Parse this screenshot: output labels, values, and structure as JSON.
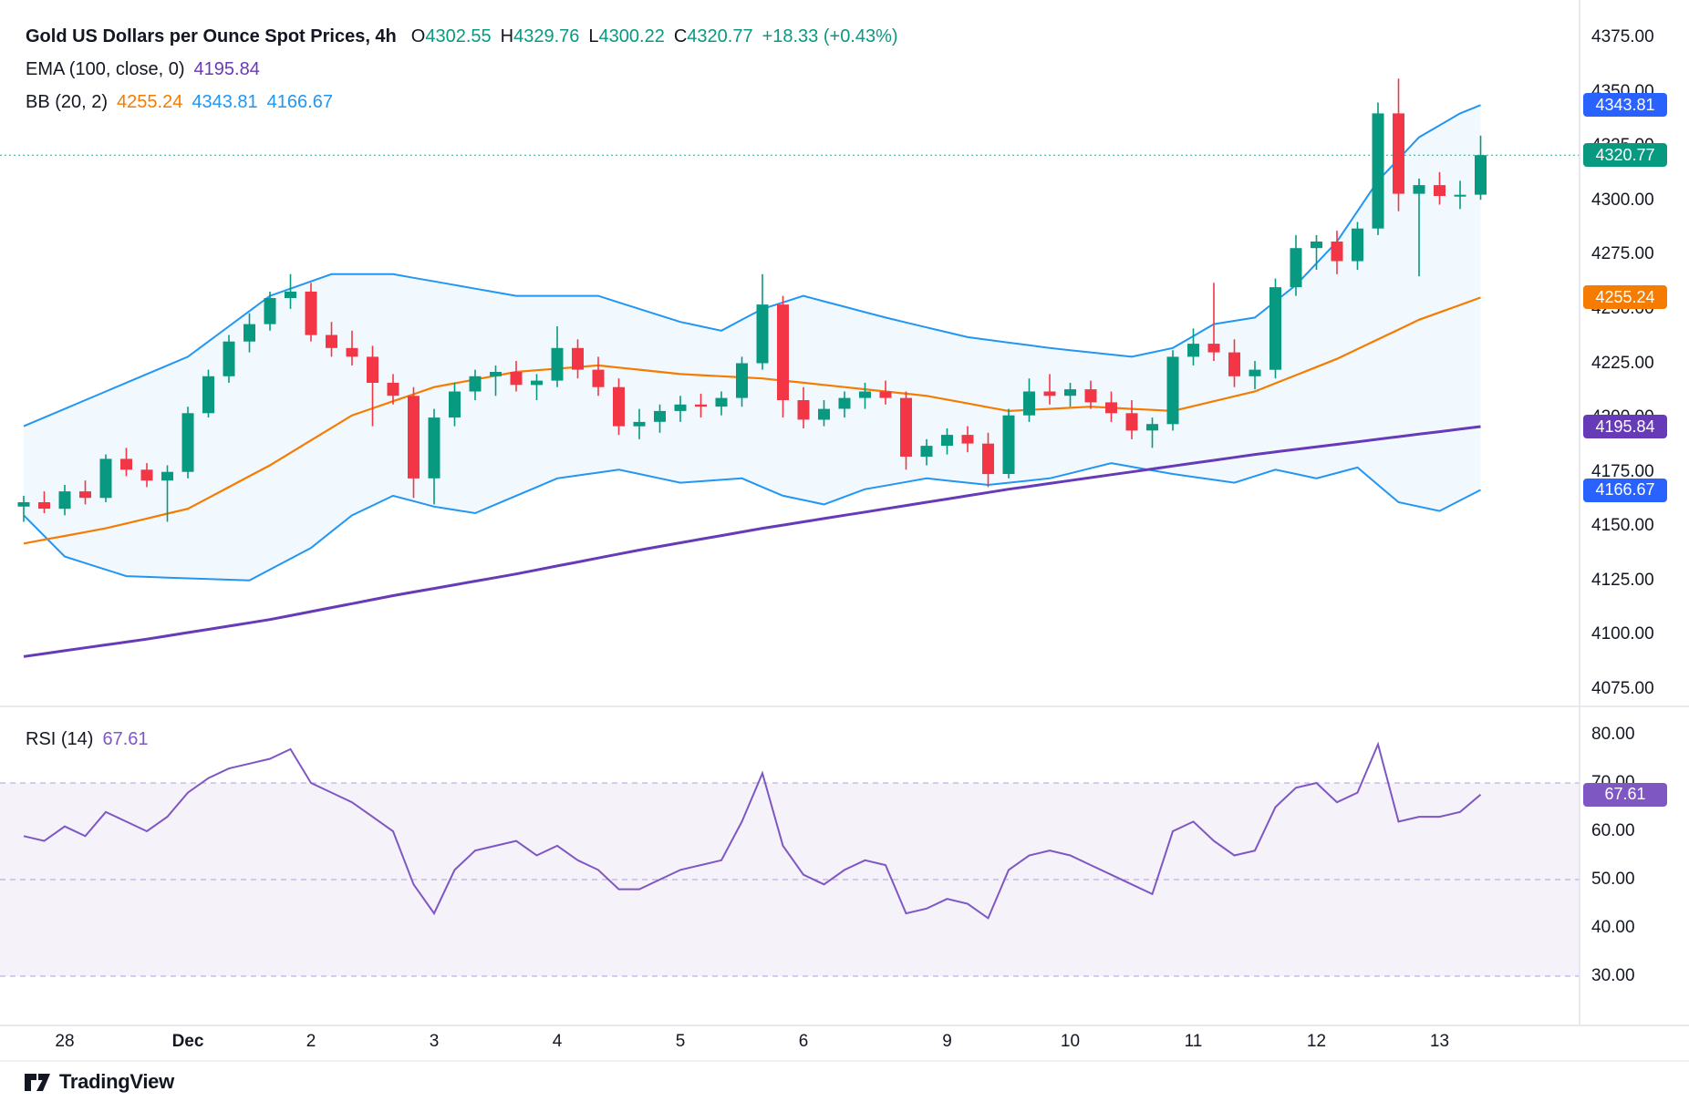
{
  "colors": {
    "up": "#089981",
    "down": "#F23645",
    "ema": "#673AB7",
    "bb_mid": "#F57C00",
    "bb_band": "#2196F3",
    "rsi": "#7E57C2",
    "axis_text": "#131722",
    "separator": "#E0E3EB",
    "badge_blue": "#2962FF"
  },
  "legend": {
    "title": "Gold US Dollars per Ounce Spot Prices, 4h",
    "o_label": "O",
    "o_value": "4302.55",
    "h_label": "H",
    "h_value": "4329.76",
    "l_label": "L",
    "l_value": "4300.22",
    "c_label": "C",
    "c_value": "4320.77",
    "change": "+18.33 (+0.43%)",
    "ema_label": "EMA (100, close, 0)",
    "ema_value": "4195.84",
    "bb_label": "BB (20, 2)",
    "bb_mid_value": "4255.24",
    "bb_upper_value": "4343.81",
    "bb_lower_value": "4166.67"
  },
  "rsi_legend": {
    "label": "RSI (14)",
    "value": "67.61"
  },
  "footer": {
    "brand": "TradingView"
  },
  "price_axis": {
    "ticks": [
      "4375.00",
      "4350.00",
      "4325.00",
      "4300.00",
      "4275.00",
      "4250.00",
      "4225.00",
      "4200.00",
      "4175.00",
      "4150.00",
      "4125.00",
      "4100.00",
      "4075.00"
    ],
    "badges": [
      {
        "text": "4343.81",
        "value": 4343.81,
        "color": "#2962FF"
      },
      {
        "text": "4320.77",
        "value": 4320.77,
        "color": "#089981"
      },
      {
        "text": "4255.24",
        "value": 4255.24,
        "color": "#F57C00"
      },
      {
        "text": "4195.84",
        "value": 4195.84,
        "color": "#673AB7"
      },
      {
        "text": "4166.67",
        "value": 4166.67,
        "color": "#2962FF"
      }
    ]
  },
  "rsi_axis": {
    "ticks": [
      "80.00",
      "70.00",
      "60.00",
      "50.00",
      "40.00",
      "30.00"
    ],
    "tick_values": [
      80,
      70,
      60,
      50,
      40,
      30
    ],
    "dashed_levels": [
      70,
      50,
      30
    ],
    "band": [
      30,
      70
    ],
    "badge": {
      "text": "67.61",
      "value": 67.61,
      "color": "#7E57C2"
    }
  },
  "time_axis": {
    "labels": [
      {
        "text": "28",
        "idx": 2
      },
      {
        "text": "Dec",
        "idx": 8,
        "bold": true
      },
      {
        "text": "2",
        "idx": 14
      },
      {
        "text": "3",
        "idx": 20
      },
      {
        "text": "4",
        "idx": 26
      },
      {
        "text": "5",
        "idx": 32
      },
      {
        "text": "6",
        "idx": 38
      },
      {
        "text": "9",
        "idx": 45
      },
      {
        "text": "10",
        "idx": 51
      },
      {
        "text": "11",
        "idx": 57
      },
      {
        "text": "12",
        "idx": 63
      },
      {
        "text": "13",
        "idx": 69
      }
    ]
  },
  "chart_data": {
    "type": "candlestick",
    "title": "Gold US Dollars per Ounce Spot Prices",
    "timeframe": "4h",
    "ohlc_current": {
      "open": 4302.55,
      "high": 4329.76,
      "low": 4300.22,
      "close": 4320.77,
      "change_abs": 18.33,
      "change_pct": 0.43
    },
    "indicators": [
      "EMA (100, close, 0) = 4195.84",
      "BB (20, 2) = 4255.24 / 4343.81 / 4166.67",
      "RSI (14) = 67.61"
    ],
    "price_axis_range": [
      4075,
      4375
    ],
    "rsi_axis_ticks": [
      80,
      70,
      60,
      50,
      40,
      30
    ],
    "candles": [
      [
        4159,
        4164,
        4152,
        4161
      ],
      [
        4161,
        4166,
        4156,
        4158
      ],
      [
        4158,
        4169,
        4155,
        4166
      ],
      [
        4166,
        4171,
        4160,
        4163
      ],
      [
        4163,
        4183,
        4161,
        4181
      ],
      [
        4181,
        4186,
        4173,
        4176
      ],
      [
        4176,
        4179,
        4168,
        4171
      ],
      [
        4171,
        4178,
        4152,
        4175
      ],
      [
        4175,
        4205,
        4172,
        4202
      ],
      [
        4202,
        4222,
        4200,
        4219
      ],
      [
        4219,
        4238,
        4216,
        4235
      ],
      [
        4235,
        4248,
        4230,
        4243
      ],
      [
        4243,
        4258,
        4240,
        4255
      ],
      [
        4255,
        4266,
        4250,
        4258
      ],
      [
        4258,
        4262,
        4235,
        4238
      ],
      [
        4238,
        4244,
        4228,
        4232
      ],
      [
        4232,
        4240,
        4224,
        4228
      ],
      [
        4228,
        4233,
        4196,
        4216
      ],
      [
        4216,
        4220,
        4206,
        4210
      ],
      [
        4210,
        4214,
        4163,
        4172
      ],
      [
        4172,
        4204,
        4160,
        4200
      ],
      [
        4200,
        4216,
        4196,
        4212
      ],
      [
        4212,
        4222,
        4208,
        4219
      ],
      [
        4219,
        4224,
        4210,
        4221
      ],
      [
        4221,
        4226,
        4212,
        4215
      ],
      [
        4215,
        4220,
        4208,
        4217
      ],
      [
        4217,
        4242,
        4214,
        4232
      ],
      [
        4232,
        4236,
        4218,
        4222
      ],
      [
        4222,
        4228,
        4210,
        4214
      ],
      [
        4214,
        4218,
        4192,
        4196
      ],
      [
        4196,
        4204,
        4190,
        4198
      ],
      [
        4198,
        4206,
        4193,
        4203
      ],
      [
        4203,
        4210,
        4198,
        4206
      ],
      [
        4206,
        4211,
        4200,
        4205
      ],
      [
        4205,
        4212,
        4201,
        4209
      ],
      [
        4209,
        4228,
        4205,
        4225
      ],
      [
        4225,
        4266,
        4222,
        4252
      ],
      [
        4252,
        4256,
        4200,
        4208
      ],
      [
        4208,
        4214,
        4195,
        4199
      ],
      [
        4199,
        4208,
        4196,
        4204
      ],
      [
        4204,
        4212,
        4200,
        4209
      ],
      [
        4209,
        4216,
        4204,
        4212
      ],
      [
        4212,
        4217,
        4206,
        4209
      ],
      [
        4209,
        4212,
        4176,
        4182
      ],
      [
        4182,
        4190,
        4178,
        4187
      ],
      [
        4187,
        4195,
        4183,
        4192
      ],
      [
        4192,
        4196,
        4184,
        4188
      ],
      [
        4188,
        4193,
        4168,
        4174
      ],
      [
        4174,
        4204,
        4172,
        4201
      ],
      [
        4201,
        4218,
        4198,
        4212
      ],
      [
        4212,
        4220,
        4206,
        4210
      ],
      [
        4210,
        4216,
        4205,
        4213
      ],
      [
        4213,
        4217,
        4204,
        4207
      ],
      [
        4207,
        4212,
        4198,
        4202
      ],
      [
        4202,
        4208,
        4190,
        4194
      ],
      [
        4194,
        4200,
        4186,
        4197
      ],
      [
        4197,
        4231,
        4194,
        4228
      ],
      [
        4228,
        4241,
        4224,
        4234
      ],
      [
        4234,
        4262,
        4226,
        4230
      ],
      [
        4230,
        4236,
        4214,
        4219
      ],
      [
        4219,
        4226,
        4213,
        4222
      ],
      [
        4222,
        4264,
        4218,
        4260
      ],
      [
        4260,
        4284,
        4256,
        4278
      ],
      [
        4278,
        4284,
        4268,
        4281
      ],
      [
        4281,
        4286,
        4266,
        4272
      ],
      [
        4272,
        4290,
        4268,
        4287
      ],
      [
        4287,
        4345,
        4284,
        4340
      ],
      [
        4340,
        4356,
        4295,
        4303
      ],
      [
        4303,
        4310,
        4265,
        4307
      ],
      [
        4307,
        4313,
        4298,
        4302
      ],
      [
        4302,
        4309,
        4296,
        4302.55
      ],
      [
        4302.55,
        4329.76,
        4300.22,
        4320.77
      ]
    ],
    "ema100": [
      [
        0,
        4090
      ],
      [
        6,
        4098
      ],
      [
        12,
        4107
      ],
      [
        18,
        4118
      ],
      [
        24,
        4128
      ],
      [
        30,
        4139
      ],
      [
        36,
        4149
      ],
      [
        42,
        4158
      ],
      [
        48,
        4167
      ],
      [
        54,
        4175
      ],
      [
        60,
        4183
      ],
      [
        66,
        4190
      ],
      [
        71,
        4195.84
      ]
    ],
    "bb_upper": [
      [
        0,
        4196
      ],
      [
        4,
        4212
      ],
      [
        8,
        4228
      ],
      [
        12,
        4256
      ],
      [
        15,
        4266
      ],
      [
        18,
        4266
      ],
      [
        21,
        4261
      ],
      [
        24,
        4256
      ],
      [
        28,
        4256
      ],
      [
        32,
        4244
      ],
      [
        34,
        4240
      ],
      [
        36,
        4250
      ],
      [
        38,
        4256
      ],
      [
        42,
        4246
      ],
      [
        46,
        4237
      ],
      [
        50,
        4232
      ],
      [
        54,
        4228
      ],
      [
        56,
        4232
      ],
      [
        58,
        4243
      ],
      [
        60,
        4246
      ],
      [
        62,
        4261
      ],
      [
        64,
        4281
      ],
      [
        66,
        4309
      ],
      [
        68,
        4329
      ],
      [
        70,
        4340
      ],
      [
        71,
        4343.81
      ]
    ],
    "bb_mid": [
      [
        0,
        4142
      ],
      [
        4,
        4149
      ],
      [
        8,
        4158
      ],
      [
        12,
        4178
      ],
      [
        16,
        4201
      ],
      [
        20,
        4214
      ],
      [
        24,
        4221
      ],
      [
        28,
        4224
      ],
      [
        32,
        4220
      ],
      [
        36,
        4218
      ],
      [
        40,
        4214
      ],
      [
        44,
        4210
      ],
      [
        48,
        4203
      ],
      [
        52,
        4205
      ],
      [
        56,
        4203
      ],
      [
        60,
        4212
      ],
      [
        64,
        4227
      ],
      [
        68,
        4245
      ],
      [
        71,
        4255.24
      ]
    ],
    "bb_lower": [
      [
        0,
        4155
      ],
      [
        2,
        4136
      ],
      [
        5,
        4127
      ],
      [
        11,
        4125
      ],
      [
        14,
        4140
      ],
      [
        16,
        4155
      ],
      [
        18,
        4164
      ],
      [
        20,
        4159
      ],
      [
        22,
        4156
      ],
      [
        24,
        4164
      ],
      [
        26,
        4172
      ],
      [
        29,
        4176
      ],
      [
        32,
        4170
      ],
      [
        35,
        4172
      ],
      [
        37,
        4164
      ],
      [
        39,
        4160
      ],
      [
        41,
        4167
      ],
      [
        44,
        4172
      ],
      [
        47,
        4169
      ],
      [
        50,
        4172
      ],
      [
        53,
        4179
      ],
      [
        56,
        4174
      ],
      [
        59,
        4170
      ],
      [
        61,
        4176
      ],
      [
        63,
        4172
      ],
      [
        65,
        4177
      ],
      [
        67,
        4161
      ],
      [
        69,
        4157
      ],
      [
        71,
        4166.67
      ]
    ],
    "rsi14": [
      59,
      58,
      61,
      59,
      64,
      62,
      60,
      63,
      68,
      71,
      73,
      74,
      75,
      77,
      70,
      68,
      66,
      63,
      60,
      49,
      43,
      52,
      56,
      57,
      58,
      55,
      57,
      54,
      52,
      48,
      48,
      50,
      52,
      53,
      54,
      62,
      72,
      57,
      51,
      49,
      52,
      54,
      53,
      43,
      44,
      46,
      45,
      42,
      52,
      55,
      56,
      55,
      53,
      51,
      49,
      47,
      60,
      62,
      58,
      55,
      56,
      65,
      69,
      70,
      66,
      68,
      78,
      62,
      63,
      63,
      64,
      67.61
    ]
  }
}
